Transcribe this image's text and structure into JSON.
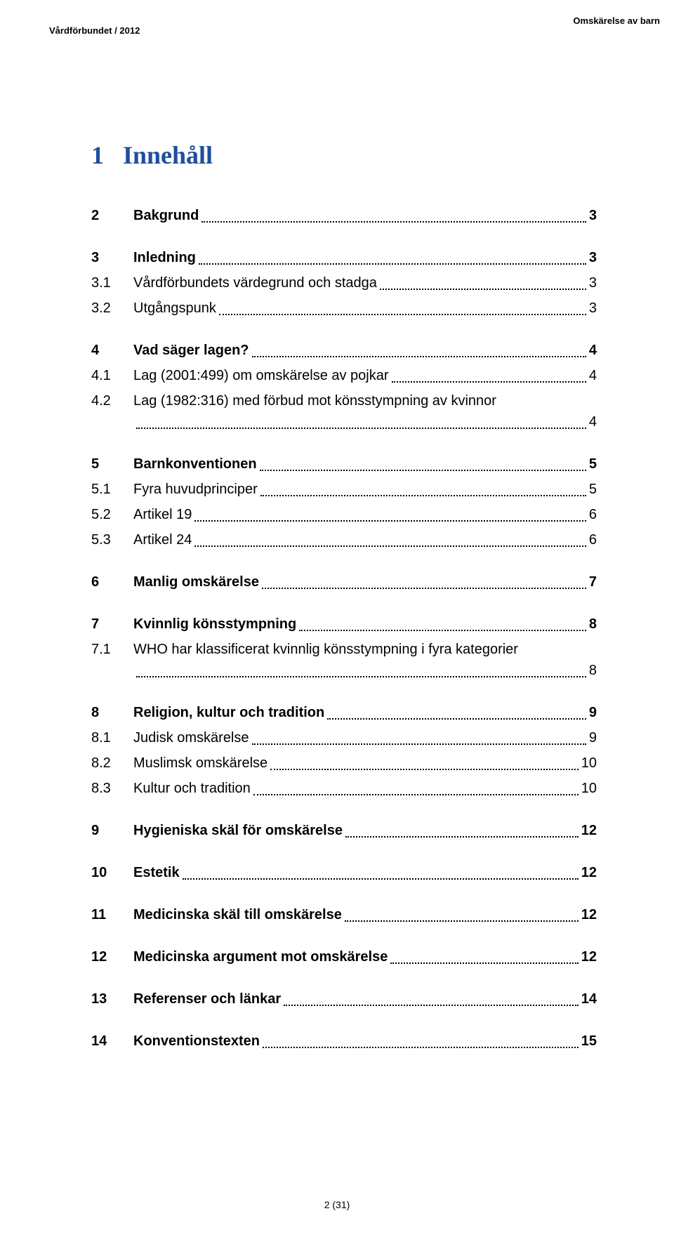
{
  "header": {
    "left": "Vårdförbundet / 2012",
    "right": "Omskärelse av barn"
  },
  "main_heading_num": "1",
  "main_heading_text": "Innehåll",
  "footer": "2 (31)",
  "toc": [
    {
      "group": [
        {
          "num": "2",
          "title": "Bakgrund",
          "page": "3",
          "bold": true
        }
      ]
    },
    {
      "group": [
        {
          "num": "3",
          "title": "Inledning",
          "page": "3",
          "bold": true
        },
        {
          "num": "3.1",
          "title": "Vårdförbundets värdegrund och stadga",
          "page": "3",
          "bold": false
        },
        {
          "num": "3.2",
          "title": "Utgångspunk",
          "page": "3",
          "bold": false
        }
      ]
    },
    {
      "group": [
        {
          "num": "4",
          "title": "Vad säger lagen?",
          "page": "4",
          "bold": true
        },
        {
          "num": "4.1",
          "title": "Lag (2001:499) om omskärelse av pojkar",
          "page": "4",
          "bold": false
        },
        {
          "num": "4.2",
          "title": "Lag (1982:316) med förbud mot könsstympning av kvinnor",
          "page": "4",
          "bold": false,
          "wrap": true
        }
      ]
    },
    {
      "group": [
        {
          "num": "5",
          "title": "Barnkonventionen",
          "page": "5",
          "bold": true
        },
        {
          "num": "5.1",
          "title": "Fyra huvudprinciper",
          "page": "5",
          "bold": false
        },
        {
          "num": "5.2",
          "title": "Artikel 19",
          "page": "6",
          "bold": false
        },
        {
          "num": "5.3",
          "title": "Artikel 24",
          "page": "6",
          "bold": false
        }
      ]
    },
    {
      "group": [
        {
          "num": "6",
          "title": "Manlig omskärelse",
          "page": "7",
          "bold": true
        }
      ]
    },
    {
      "group": [
        {
          "num": "7",
          "title": "Kvinnlig könsstympning",
          "page": "8",
          "bold": true
        },
        {
          "num": "7.1",
          "title": "WHO har klassificerat kvinnlig könsstympning i fyra kategorier",
          "page": "8",
          "bold": false,
          "wrap": true
        }
      ]
    },
    {
      "group": [
        {
          "num": "8",
          "title": "Religion, kultur och tradition",
          "page": "9",
          "bold": true
        },
        {
          "num": "8.1",
          "title": "Judisk omskärelse",
          "page": "9",
          "bold": false
        },
        {
          "num": "8.2",
          "title": "Muslimsk omskärelse",
          "page": "10",
          "bold": false
        },
        {
          "num": "8.3",
          "title": "Kultur och tradition",
          "page": "10",
          "bold": false
        }
      ]
    },
    {
      "group": [
        {
          "num": "9",
          "title": "Hygieniska skäl för omskärelse",
          "page": "12",
          "bold": true
        }
      ]
    },
    {
      "group": [
        {
          "num": "10",
          "title": "Estetik",
          "page": "12",
          "bold": true
        }
      ]
    },
    {
      "group": [
        {
          "num": "11",
          "title": "Medicinska skäl till omskärelse",
          "page": "12",
          "bold": true
        }
      ]
    },
    {
      "group": [
        {
          "num": "12",
          "title": "Medicinska argument mot omskärelse",
          "page": "12",
          "bold": true
        }
      ]
    },
    {
      "group": [
        {
          "num": "13",
          "title": "Referenser och länkar",
          "page": "14",
          "bold": true
        }
      ]
    },
    {
      "group": [
        {
          "num": "14",
          "title": "Konventionstexten",
          "page": "15",
          "bold": true
        }
      ]
    }
  ]
}
